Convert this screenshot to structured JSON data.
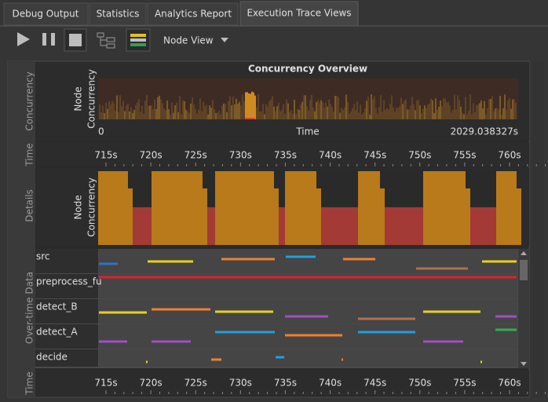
{
  "tabs": [
    "Debug Output",
    "Statistics",
    "Analytics Report",
    "Execution Trace Views"
  ],
  "toolbar": {
    "view_selector": "Node View"
  },
  "sections": {
    "concurrency": "Concurrency",
    "time": "Time",
    "details": "Details",
    "over_time_data": "Over-time Data",
    "time_bottom": "Time"
  },
  "concurrency_overview": {
    "title": "Concurrency Overview",
    "y_label_lines": [
      "Node",
      "Concurrency"
    ],
    "x_label": "Time",
    "x_start": "0",
    "x_end": "2029.038327s"
  },
  "time_axis": {
    "ticks": [
      "715s",
      "720s",
      "725s",
      "730s",
      "735s",
      "740s",
      "745s",
      "750s",
      "755s",
      "760s"
    ]
  },
  "details": {
    "y_label_lines": [
      "Node",
      "Concurrency"
    ]
  },
  "rows": [
    "src",
    "preprocess_fu",
    "detect_B",
    "detect_A",
    "decide"
  ]
}
